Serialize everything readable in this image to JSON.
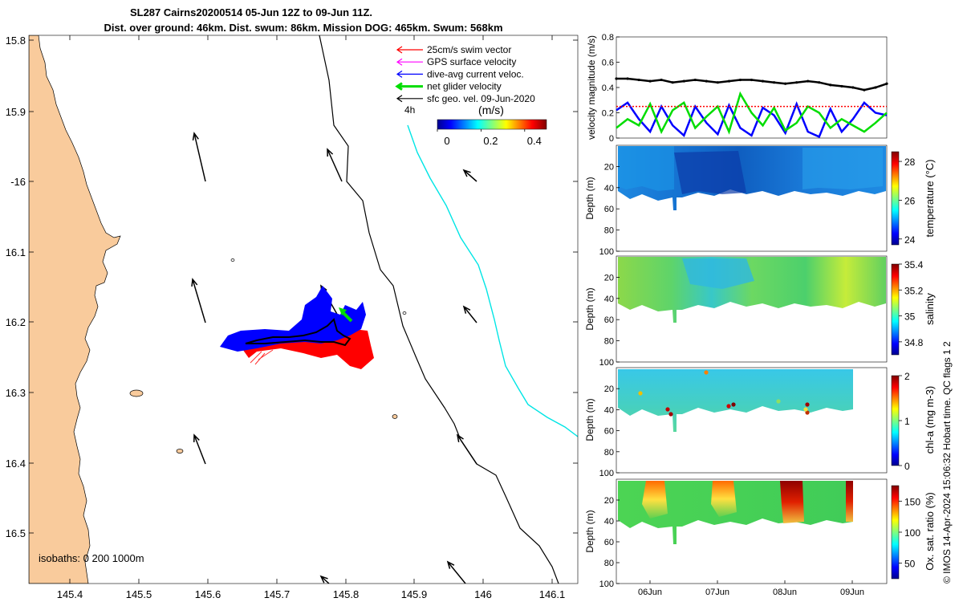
{
  "header": {
    "title": "SL287 Cairns20200514 05-Jun 12Z to 09-Jun 11Z.",
    "subtitle": "Dist. over ground: 46km. Dist. swum: 86km. Mission DOG: 465km. Swum: 568km"
  },
  "map": {
    "lon_ticks": [
      "145.4",
      "145.5",
      "145.6",
      "145.7",
      "145.8",
      "145.9",
      "146",
      "146.1"
    ],
    "lat_ticks": [
      "15.8",
      "15.9",
      "-16",
      "16.1",
      "16.2",
      "16.3",
      "16.4",
      "16.5"
    ],
    "isobaths_label": "isobaths: 0   200  1000m",
    "legend": [
      {
        "label": "25cm/s swim vector",
        "color": "#ff0000"
      },
      {
        "label": "GPS surface velocity",
        "color": "#ff00ff"
      },
      {
        "label": "dive-avg current veloc.",
        "color": "#0000ff"
      },
      {
        "label": "net glider velocity",
        "color": "#00dd00"
      },
      {
        "label": "sfc geo. vel. 09-Jun-2020",
        "color": "#000000"
      }
    ],
    "legend_extra": "4h",
    "colorbar": {
      "title": "(m/s)",
      "ticks": [
        "0",
        "0.2",
        "0.4"
      ]
    },
    "land_color": "#f9cb9c"
  },
  "chart_data": [
    {
      "type": "line",
      "ylabel": "velocity magnitude (m/s)",
      "ylim": [
        0,
        0.8
      ],
      "yticks": [
        "0",
        "0.2",
        "0.4",
        "0.6",
        "0.8"
      ],
      "series": [
        {
          "color": "#000000",
          "values": [
            0.47,
            0.47,
            0.46,
            0.45,
            0.46,
            0.44,
            0.45,
            0.46,
            0.45,
            0.44,
            0.45,
            0.46,
            0.46,
            0.45,
            0.44,
            0.43,
            0.44,
            0.45,
            0.44,
            0.42,
            0.41,
            0.4,
            0.38,
            0.4,
            0.43
          ]
        },
        {
          "color": "#0000ff",
          "values": [
            0.22,
            0.28,
            0.15,
            0.05,
            0.25,
            0.1,
            0.02,
            0.25,
            0.12,
            0.03,
            0.26,
            0.08,
            0.02,
            0.24,
            0.18,
            0.04,
            0.27,
            0.05,
            0.01,
            0.23,
            0.05,
            0.15,
            0.28,
            0.2,
            0.18
          ]
        },
        {
          "color": "#00dd00",
          "values": [
            0.08,
            0.15,
            0.1,
            0.27,
            0.05,
            0.22,
            0.28,
            0.08,
            0.17,
            0.25,
            0.05,
            0.35,
            0.2,
            0.1,
            0.24,
            0.06,
            0.12,
            0.25,
            0.2,
            0.08,
            0.15,
            0.1,
            0.05,
            0.12,
            0.2
          ]
        },
        {
          "color": "#ff0000",
          "values": [
            0.25,
            0.25,
            0.25,
            0.25,
            0.25,
            0.25,
            0.25,
            0.25,
            0.25,
            0.25,
            0.25,
            0.25,
            0.25,
            0.25,
            0.25,
            0.25,
            0.25,
            0.25,
            0.25,
            0.25,
            0.25,
            0.25,
            0.25,
            0.25,
            0.25
          ]
        }
      ]
    },
    {
      "type": "heatmap",
      "ylabel": "Depth (m)",
      "yticks": [
        "20",
        "40",
        "60",
        "80",
        "100"
      ],
      "colorbar_label": "temperature (°C)",
      "colorbar_ticks": [
        "24",
        "26",
        "28"
      ],
      "clim": [
        23.7,
        28.5
      ]
    },
    {
      "type": "heatmap",
      "ylabel": "Depth (m)",
      "yticks": [
        "20",
        "40",
        "60",
        "80",
        "100"
      ],
      "colorbar_label": "salinity",
      "colorbar_ticks": [
        "34.8",
        "35",
        "35.2",
        "35.4"
      ],
      "clim": [
        34.7,
        35.4
      ]
    },
    {
      "type": "heatmap",
      "ylabel": "Depth (m)",
      "yticks": [
        "20",
        "40",
        "60",
        "80",
        "100"
      ],
      "colorbar_label": "chl-a (mg m-3)",
      "colorbar_ticks": [
        "0",
        "1",
        "2"
      ],
      "clim": [
        0,
        2
      ]
    },
    {
      "type": "heatmap",
      "ylabel": "Depth (m)",
      "yticks": [
        "20",
        "40",
        "60",
        "80",
        "100"
      ],
      "colorbar_label": "Ox. sat. ratio (%)",
      "colorbar_ticks": [
        "50",
        "100",
        "150"
      ],
      "clim": [
        25,
        175
      ]
    }
  ],
  "time_axis": {
    "ticks": [
      "06Jun",
      "07Jun",
      "08Jun",
      "09Jun"
    ]
  },
  "footer": {
    "credit": "© IMOS 14-Apr-2024 15:06:32 Hobart time. QC flags 1  2"
  }
}
